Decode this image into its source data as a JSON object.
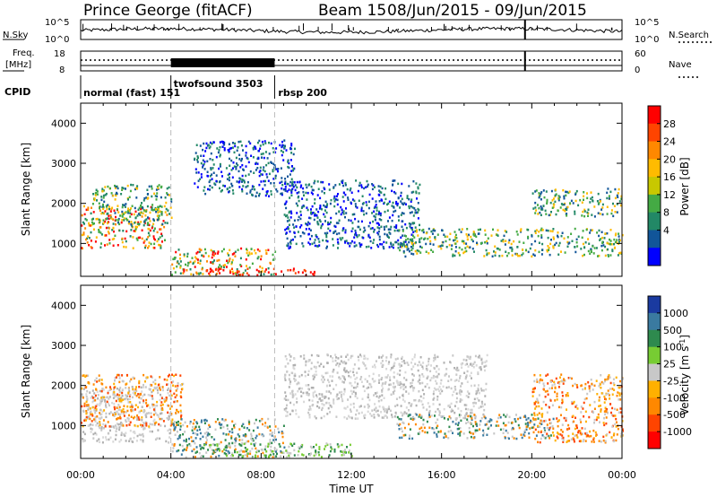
{
  "header": {
    "station": "Prince George (fitACF)",
    "beam": "Beam 15",
    "date_range": "08/Jun/2015 - 09/Jun/2015"
  },
  "top_panels": {
    "sky_label": "N.Sky",
    "sky_ticks": [
      "10^5",
      "10^0"
    ],
    "search_label": "N.Search",
    "search_ticks": [
      "10^5",
      "10^0"
    ],
    "freq_label": "Freq.",
    "freq_unit": "[MHz]",
    "freq_ticks": [
      "18",
      "8"
    ],
    "nave_label": "Nave",
    "nave_ticks": [
      "60",
      "0"
    ],
    "cpid_label": "CPID",
    "cpid_segments": [
      {
        "label": "normal (fast) 151",
        "start_hour": 0,
        "end_hour": 4.0
      },
      {
        "label": "twofsound 3503",
        "start_hour": 4.0,
        "end_hour": 8.6
      },
      {
        "label": "rbsp 200",
        "start_hour": 8.6,
        "end_hour": 24
      }
    ],
    "freq_block": {
      "start_hour": 4.0,
      "end_hour": 8.6
    }
  },
  "power_colorbar": {
    "label": "Power [dB]",
    "ticks": [
      "28",
      "24",
      "20",
      "16",
      "12",
      "8",
      "4"
    ],
    "colors": [
      "#ff0000",
      "#ff4400",
      "#ff8800",
      "#ffbb00",
      "#c8c800",
      "#44aa44",
      "#228866",
      "#115599",
      "#0000ff"
    ]
  },
  "velocity_colorbar": {
    "label": "Velocity [m s",
    "label_sup": "-1",
    "label_end": "]",
    "ticks": [
      "1000",
      "500",
      "100",
      "25",
      "-25",
      "-100",
      "-500",
      "-1000"
    ],
    "colors": [
      "#1a3aa0",
      "#3a7aa0",
      "#2e8a4e",
      "#77cc33",
      "#c8c8c8",
      "#ffb000",
      "#ff8800",
      "#ff4400",
      "#ff0000"
    ]
  },
  "chart_data": [
    {
      "type": "heatmap",
      "title": "Power",
      "xlabel": "Time UT",
      "ylabel": "Slant Range [km]",
      "xlim": [
        0,
        24
      ],
      "ylim": [
        180,
        4500
      ],
      "x_tick_labels": [
        "00:00",
        "04:00",
        "08:00",
        "12:00",
        "16:00",
        "20:00",
        "00:00"
      ],
      "y_ticks": [
        1000,
        2000,
        3000,
        4000
      ],
      "cpid_dividers": [
        4.0,
        8.6
      ],
      "clim": [
        0,
        30
      ],
      "colorbar_label": "Power [dB]",
      "echo_regions": [
        {
          "start_hour": 0.0,
          "end_hour": 3.8,
          "range_low": 900,
          "range_high": 2000,
          "level": "strong"
        },
        {
          "start_hour": 0.5,
          "end_hour": 4.0,
          "range_low": 1500,
          "range_high": 2500,
          "level": "medium"
        },
        {
          "start_hour": 4.0,
          "end_hour": 8.6,
          "range_low": 200,
          "range_high": 900,
          "level": "strong"
        },
        {
          "start_hour": 5.5,
          "end_hour": 10.5,
          "range_low": 200,
          "range_high": 400,
          "level": "very_strong"
        },
        {
          "start_hour": 5.0,
          "end_hour": 9.5,
          "range_low": 2200,
          "range_high": 3600,
          "level": "weak"
        },
        {
          "start_hour": 9.0,
          "end_hour": 15.0,
          "range_low": 900,
          "range_high": 2600,
          "level": "weak"
        },
        {
          "start_hour": 14.0,
          "end_hour": 24.0,
          "range_low": 700,
          "range_high": 1400,
          "level": "medium"
        },
        {
          "start_hour": 20.0,
          "end_hour": 24.0,
          "range_low": 1700,
          "range_high": 2400,
          "level": "medium"
        }
      ]
    },
    {
      "type": "heatmap",
      "title": "Velocity",
      "xlabel": "Time UT",
      "ylabel": "Slant Range [km]",
      "xlim": [
        0,
        24
      ],
      "ylim": [
        180,
        4500
      ],
      "x_tick_labels": [
        "00:00",
        "04:00",
        "08:00",
        "12:00",
        "16:00",
        "20:00",
        "00:00"
      ],
      "y_ticks": [
        1000,
        2000,
        3000,
        4000
      ],
      "clim": [
        -1000,
        1000
      ],
      "colorbar_label": "Velocity [m s-1]",
      "echo_regions": [
        {
          "start_hour": 0.0,
          "end_hour": 4.0,
          "range_low": 600,
          "range_high": 2000,
          "level": "ground_scatter"
        },
        {
          "start_hour": 0.0,
          "end_hour": 4.5,
          "range_low": 1000,
          "range_high": 2300,
          "level": "negative"
        },
        {
          "start_hour": 4.0,
          "end_hour": 9.0,
          "range_low": 200,
          "range_high": 1200,
          "level": "mixed"
        },
        {
          "start_hour": 5.0,
          "end_hour": 12.0,
          "range_low": 200,
          "range_high": 600,
          "level": "positive_green"
        },
        {
          "start_hour": 9.0,
          "end_hour": 18.0,
          "range_low": 1200,
          "range_high": 2800,
          "level": "ground_scatter"
        },
        {
          "start_hour": 14.0,
          "end_hour": 21.0,
          "range_low": 700,
          "range_high": 1300,
          "level": "mixed"
        },
        {
          "start_hour": 20.0,
          "end_hour": 24.0,
          "range_low": 600,
          "range_high": 2300,
          "level": "negative"
        }
      ]
    }
  ]
}
